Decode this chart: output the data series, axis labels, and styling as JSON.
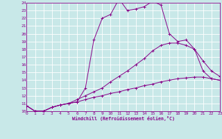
{
  "xlabel": "Windchill (Refroidissement éolien,°C)",
  "bg_color": "#c8e8e8",
  "grid_color": "#ffffff",
  "line_color": "#880088",
  "xmin": 0,
  "xmax": 23,
  "ymin": 10,
  "ymax": 24,
  "curve1_x": [
    0,
    1,
    2,
    3,
    4,
    5,
    6,
    7,
    8,
    9,
    10,
    11,
    12,
    13,
    14,
    15,
    16,
    17,
    18,
    19,
    20,
    21,
    22,
    23
  ],
  "curve1_y": [
    10.7,
    10.0,
    10.0,
    10.5,
    10.8,
    11.0,
    11.2,
    13.0,
    19.2,
    22.0,
    22.5,
    24.5,
    23.0,
    23.2,
    23.5,
    24.2,
    23.7,
    20.0,
    19.0,
    19.2,
    18.0,
    15.2,
    14.2,
    14.0
  ],
  "curve2_x": [
    0,
    1,
    2,
    3,
    4,
    5,
    6,
    7,
    8,
    9,
    10,
    11,
    12,
    13,
    14,
    15,
    16,
    17,
    18,
    19,
    20,
    21,
    22,
    23
  ],
  "curve2_y": [
    10.7,
    10.0,
    10.0,
    10.5,
    10.8,
    11.0,
    11.5,
    12.0,
    12.5,
    13.0,
    13.8,
    14.5,
    15.2,
    16.0,
    16.8,
    17.8,
    18.5,
    18.8,
    18.8,
    18.5,
    18.0,
    16.5,
    15.2,
    14.5
  ],
  "curve3_x": [
    0,
    1,
    2,
    3,
    4,
    5,
    6,
    7,
    8,
    9,
    10,
    11,
    12,
    13,
    14,
    15,
    16,
    17,
    18,
    19,
    20,
    21,
    22,
    23
  ],
  "curve3_y": [
    10.7,
    10.0,
    10.0,
    10.5,
    10.8,
    11.0,
    11.2,
    11.5,
    11.8,
    12.0,
    12.3,
    12.5,
    12.8,
    13.0,
    13.3,
    13.5,
    13.8,
    14.0,
    14.2,
    14.3,
    14.4,
    14.4,
    14.2,
    14.0
  ]
}
